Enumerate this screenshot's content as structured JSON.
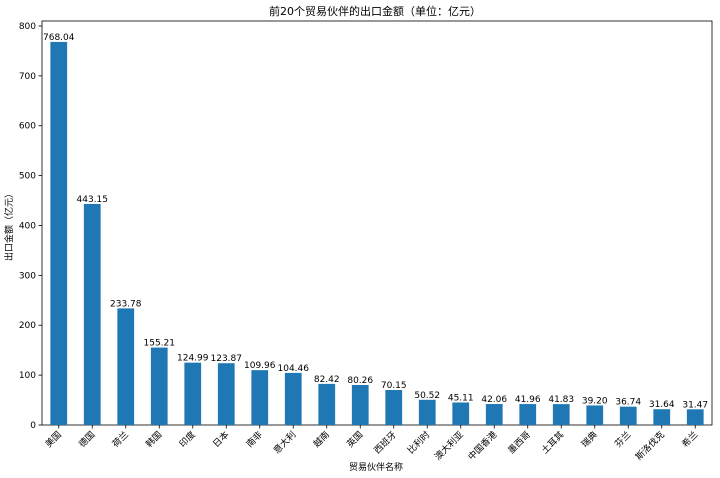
{
  "chart_data": {
    "type": "bar",
    "title": "前20个贸易伙伴的出口金额（单位：亿元）",
    "xlabel": "贸易伙伴名称",
    "ylabel": "出口金额（亿元）",
    "ylim": [
      0,
      810
    ],
    "yticks": [
      0,
      100,
      200,
      300,
      400,
      500,
      600,
      700,
      800
    ],
    "grid": false,
    "bar_color": "#1f77b4",
    "categories": [
      "美国",
      "德国",
      "荷兰",
      "韩国",
      "印度",
      "日本",
      "南非",
      "意大利",
      "越南",
      "英国",
      "西班牙",
      "比利时",
      "澳大利亚",
      "中国香港",
      "墨西哥",
      "土耳其",
      "瑞典",
      "芬兰",
      "斯洛伐克",
      "希兰"
    ],
    "values": [
      768.04,
      443.15,
      233.78,
      155.21,
      124.99,
      123.87,
      109.96,
      104.46,
      82.42,
      80.26,
      70.15,
      50.52,
      45.11,
      42.06,
      41.96,
      41.83,
      39.2,
      36.74,
      31.64,
      31.47
    ],
    "value_labels": [
      "768.04",
      "443.15",
      "233.78",
      "155.21",
      "124.99",
      "123.87",
      "109.96",
      "104.46",
      "82.42",
      "80.26",
      "70.15",
      "50.52",
      "45.11",
      "42.06",
      "41.96",
      "41.83",
      "39.20",
      "36.74",
      "31.64",
      "31.47"
    ]
  }
}
